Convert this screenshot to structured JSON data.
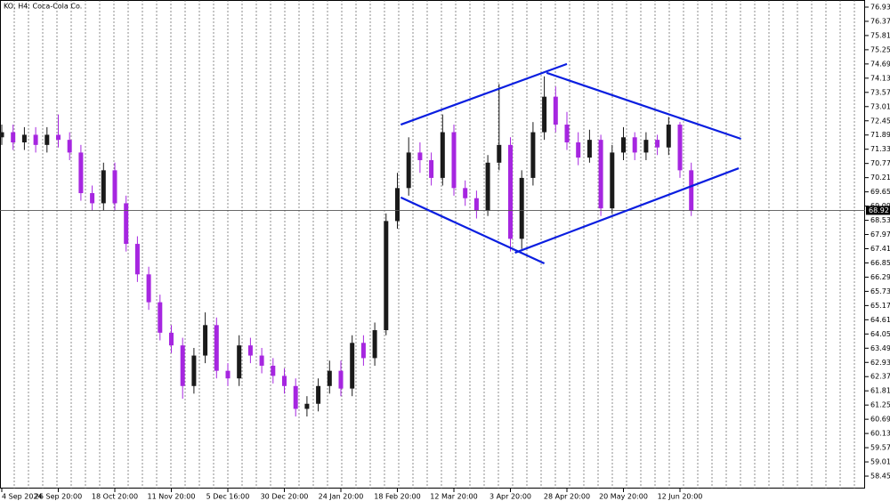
{
  "chart_data": {
    "type": "candlestick",
    "title": "KO, H4: Coca-Cola Co.",
    "categories": [
      "4 Sep 2024",
      null,
      null,
      null,
      null,
      "26 Sep 20:00",
      null,
      null,
      null,
      null,
      "18 Oct 20:00",
      null,
      null,
      null,
      null,
      "11 Nov 20:00",
      null,
      null,
      null,
      null,
      "5 Dec 16:00",
      null,
      null,
      null,
      null,
      "30 Dec 20:00",
      null,
      null,
      null,
      null,
      "24 Jan 20:00",
      null,
      null,
      null,
      null,
      "18 Feb 20:00",
      null,
      null,
      null,
      null,
      "12 Mar 20:00",
      null,
      null,
      null,
      null,
      "3 Apr 20:00",
      null,
      null,
      null,
      null,
      "28 Apr 20:00",
      null,
      null,
      null,
      null,
      "20 May 20:00",
      null,
      null,
      null,
      null,
      "12 Jun 20:00",
      null
    ],
    "open": [
      71.8,
      72.0,
      71.6,
      71.9,
      71.5,
      71.9,
      71.7,
      71.2,
      69.6,
      69.2,
      70.5,
      69.2,
      67.6,
      66.4,
      65.3,
      64.1,
      63.6,
      62.0,
      63.2,
      64.4,
      62.6,
      62.3,
      63.6,
      63.2,
      62.8,
      62.4,
      62.0,
      61.1,
      61.3,
      62.0,
      62.6,
      61.9,
      63.7,
      63.1,
      64.2,
      68.5,
      69.8,
      71.2,
      70.9,
      70.2,
      72.0,
      69.8,
      69.4,
      68.9,
      70.8,
      71.5,
      67.8,
      70.2,
      72.0,
      73.4,
      72.3,
      71.6,
      71.0,
      71.7,
      69.0,
      71.2,
      71.8,
      71.2,
      71.7,
      71.4,
      72.3,
      70.5
    ],
    "high": [
      72.3,
      72.3,
      72.2,
      72.2,
      72.2,
      72.7,
      72.0,
      71.5,
      69.9,
      70.8,
      70.8,
      69.5,
      67.9,
      66.7,
      65.6,
      64.4,
      63.9,
      63.5,
      64.9,
      64.7,
      62.9,
      64.0,
      63.9,
      63.5,
      63.1,
      62.7,
      62.3,
      61.6,
      62.3,
      63.0,
      63.0,
      64.0,
      64.0,
      64.5,
      68.8,
      70.4,
      71.8,
      71.6,
      71.2,
      72.7,
      72.3,
      70.1,
      69.7,
      71.1,
      73.9,
      71.8,
      70.5,
      72.4,
      74.2,
      73.8,
      72.8,
      72.0,
      72.1,
      71.9,
      71.5,
      72.2,
      72.0,
      72.0,
      71.9,
      72.6,
      72.4,
      70.8
    ],
    "low": [
      71.5,
      71.3,
      71.3,
      71.2,
      71.2,
      71.4,
      70.9,
      69.3,
      68.9,
      68.9,
      68.9,
      67.3,
      66.1,
      65.0,
      63.8,
      63.3,
      61.5,
      61.7,
      62.9,
      62.3,
      62.0,
      62.0,
      62.9,
      62.5,
      62.1,
      61.7,
      60.8,
      60.8,
      61.0,
      61.7,
      61.6,
      61.6,
      62.8,
      62.8,
      64.0,
      68.2,
      69.5,
      70.4,
      69.9,
      69.9,
      69.5,
      69.1,
      68.6,
      68.7,
      70.5,
      67.3,
      67.4,
      69.9,
      71.7,
      72.0,
      71.3,
      70.7,
      70.8,
      68.7,
      68.8,
      70.9,
      70.9,
      70.9,
      71.1,
      71.1,
      70.2,
      68.7
    ],
    "close": [
      72.0,
      71.6,
      71.9,
      71.5,
      71.9,
      71.7,
      71.2,
      69.6,
      69.2,
      70.5,
      69.2,
      67.6,
      66.4,
      65.3,
      64.1,
      63.6,
      62.0,
      63.2,
      64.4,
      62.6,
      62.3,
      63.6,
      63.2,
      62.8,
      62.4,
      62.0,
      61.1,
      61.3,
      62.0,
      62.6,
      61.9,
      63.7,
      63.1,
      64.2,
      68.5,
      69.8,
      71.2,
      70.9,
      70.2,
      72.0,
      69.8,
      69.4,
      68.9,
      70.8,
      71.5,
      67.8,
      70.2,
      72.0,
      73.4,
      72.3,
      71.6,
      71.0,
      71.7,
      69.0,
      71.2,
      71.8,
      71.2,
      71.7,
      71.4,
      72.3,
      70.5,
      68.9
    ],
    "up_color": "#1a1a1a",
    "down_color": "#a626e0",
    "ylim": [
      57.96,
      77.21
    ],
    "yticks": [
      76.93,
      76.37,
      75.81,
      75.25,
      74.69,
      74.13,
      73.57,
      73.01,
      72.45,
      71.89,
      71.33,
      70.77,
      70.21,
      69.65,
      69.09,
      68.53,
      67.97,
      67.41,
      66.85,
      66.29,
      65.73,
      65.17,
      64.61,
      64.05,
      63.49,
      62.93,
      62.37,
      61.81,
      61.25,
      60.69,
      60.13,
      59.57,
      59.01,
      58.45
    ],
    "last_price": 68.92,
    "trendline_color": "#0a1ee0",
    "trendlines": [
      {
        "x": [
          35.3,
          50.0
        ],
        "y": [
          72.3,
          74.69
        ]
      },
      {
        "x": [
          48.2,
          65.4
        ],
        "y": [
          74.34,
          71.74
        ]
      },
      {
        "x": [
          35.3,
          48.0
        ],
        "y": [
          69.43,
          66.83
        ]
      },
      {
        "x": [
          45.4,
          65.2
        ],
        "y": [
          67.25,
          70.58
        ]
      }
    ],
    "grid": true
  }
}
